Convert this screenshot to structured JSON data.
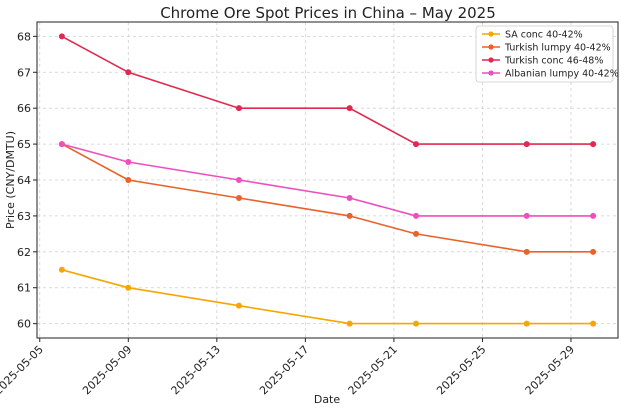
{
  "chart_data": {
    "type": "line",
    "title": "Chrome Ore Spot Prices in China – May 2025",
    "xlabel": "Date",
    "ylabel": "Price (CNY/DMTU)",
    "x": [
      "2025-05-06",
      "2025-05-09",
      "2025-05-14",
      "2025-05-19",
      "2025-05-22",
      "2025-05-27",
      "2025-05-30"
    ],
    "xticks": [
      "2025-05-05",
      "2025-05-09",
      "2025-05-13",
      "2025-05-17",
      "2025-05-21",
      "2025-05-25",
      "2025-05-29"
    ],
    "xlim": [
      "2025-05-04T21:00",
      "2025-05-31T03:00"
    ],
    "ylim": [
      59.6,
      68.4
    ],
    "yticks": [
      60,
      61,
      62,
      63,
      64,
      65,
      66,
      67,
      68
    ],
    "grid": true,
    "legend_position": "top-right",
    "series": [
      {
        "name": "SA conc 40-42%",
        "color": "#f7a600",
        "values": [
          61.5,
          61,
          60.5,
          60,
          60,
          60,
          60
        ]
      },
      {
        "name": "Turkish lumpy 40-42%",
        "color": "#e8622a",
        "values": [
          65,
          64,
          63.5,
          63,
          62.5,
          62,
          62
        ]
      },
      {
        "name": "Turkish conc 46-48%",
        "color": "#e0294e",
        "values": [
          68,
          67,
          66,
          66,
          65,
          65,
          65
        ]
      },
      {
        "name": "Albanian lumpy 40-42%",
        "color": "#ee4fbd",
        "values": [
          65,
          64.5,
          64,
          63.5,
          63,
          63,
          63
        ]
      }
    ]
  }
}
